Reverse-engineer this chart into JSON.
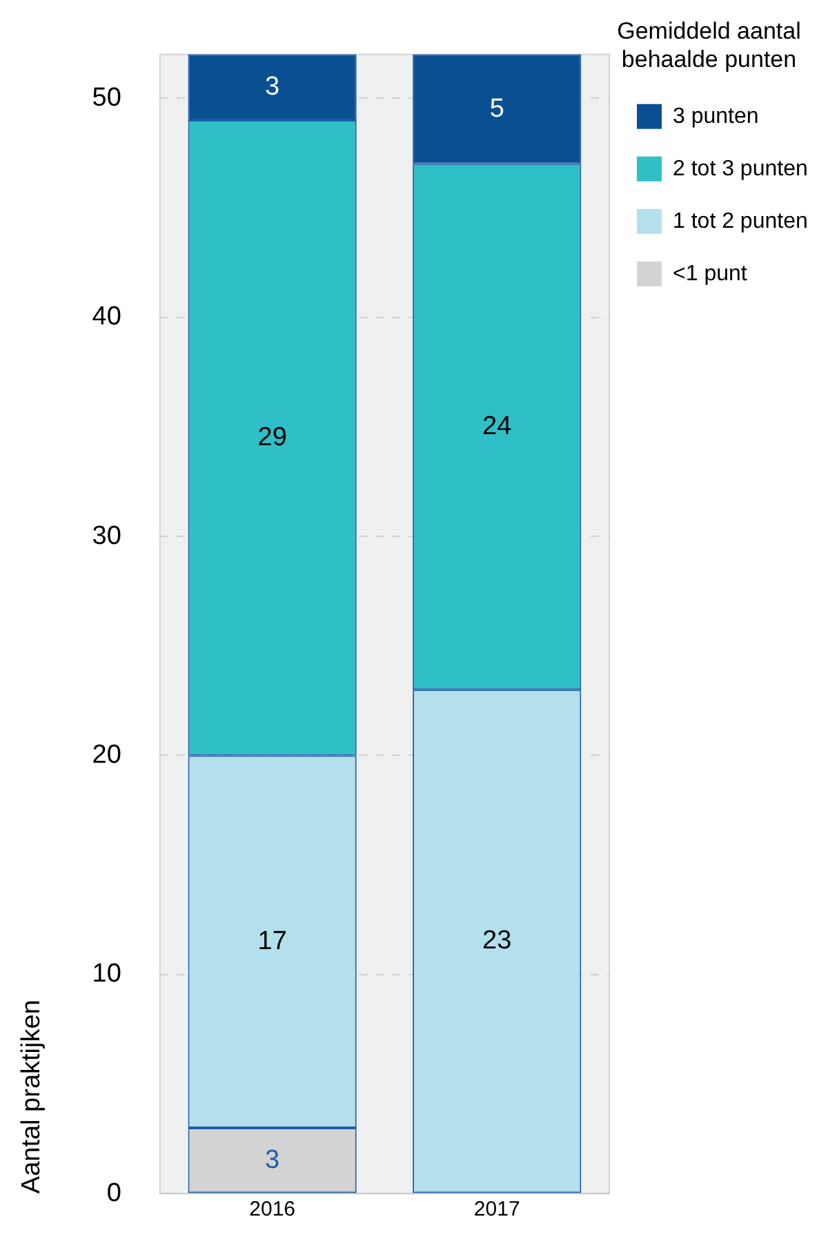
{
  "chart_data": {
    "type": "bar",
    "stacked": true,
    "categories": [
      "2016",
      "2017"
    ],
    "series": [
      {
        "name": "<1 punt",
        "color": "#d3d3d3",
        "values": [
          3,
          0
        ],
        "value_labels": [
          "3",
          null
        ]
      },
      {
        "name": "1 tot 2 punten",
        "color": "#b3e0ec",
        "values": [
          17,
          23
        ],
        "value_labels": [
          "17",
          "23"
        ]
      },
      {
        "name": "2 tot 3 punten",
        "color": "#2fbfc6",
        "values": [
          29,
          24
        ],
        "value_labels": [
          "29",
          "24"
        ]
      },
      {
        "name": "3 punten",
        "color": "#0b4f93",
        "values": [
          3,
          5
        ],
        "value_labels": [
          "3",
          "5"
        ]
      }
    ],
    "ylabel": "Aantal praktijken",
    "legend_title": "Gemiddeld aantal behaalde punten",
    "legend": "top right",
    "ylim": [
      0,
      52
    ],
    "yticks": [
      0,
      10,
      20,
      30,
      40,
      50
    ],
    "grid": "y"
  }
}
